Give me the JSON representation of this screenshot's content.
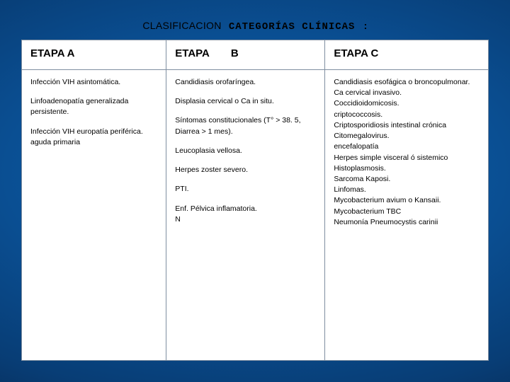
{
  "title": {
    "prefix": "CLASIFICACION",
    "main": "CATEGORÍAS CLÍNICAS",
    "suffix": ":"
  },
  "headers": {
    "a": "ETAPA A",
    "b_prefix": "ETAPA",
    "b_letter": "B",
    "c": "ETAPA C"
  },
  "col_a": {
    "item1": "Infección VIH asintomática.",
    "item2": "Linfoadenopatía generalizada persistente.",
    "item3": "Infección VIH europatía periférica. aguda primaria"
  },
  "col_b": {
    "item1": "Candidiasis orofaríngea.",
    "item2": "Displasia cervical o Ca in situ.",
    "item3": "Síntomas constitucionales (T° > 38. 5, Diarrea > 1 mes).",
    "item4": "Leucoplasia vellosa.",
    "item5": "Herpes zoster severo.",
    "item6": "PTI.",
    "item7a": "Enf. Pélvica inflamatoria.",
    "item7b": "N"
  },
  "col_c": {
    "l1": "Candidiasis esofágica o broncopulmonar.",
    "l2": "Ca cervical invasivo.",
    "l3": "Coccidioidomicosis.",
    "l4": "criptococcosis.",
    "l5": "Criptosporidiosis intestinal crónica",
    "l6": "Citomegalovirus.",
    "l7": "encefalopatía",
    "l8": "Herpes simple visceral ó sistemico",
    "l9": "Histoplasmosis.",
    "l10": "Sarcoma Kaposi.",
    "l11": "Linfomas.",
    "l12": "Mycobacterium avium o Kansaii.",
    "l13": "Mycobacterium TBC",
    "l14": "Neumonía Pneumocystis carinii"
  },
  "colors": {
    "table_border": "#7f8ea0",
    "bg_center": "#0b5aa3",
    "bg_edge": "#01102a",
    "text": "#000000",
    "cell_bg": "#ffffff"
  }
}
